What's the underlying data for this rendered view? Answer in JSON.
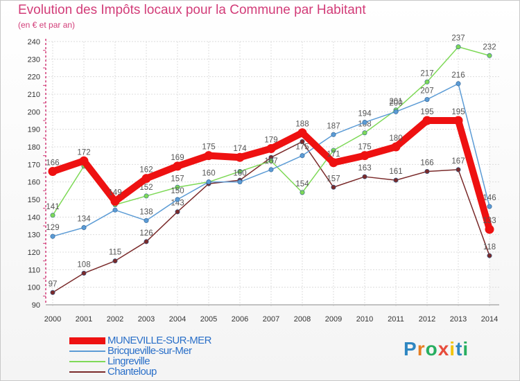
{
  "title": "Evolution des Impôts locaux pour la Commune par Habitant",
  "subtitle": "(en € et par an)",
  "logo": "Proxiti",
  "chart_data": {
    "type": "line",
    "title": "Evolution des Impôts locaux pour la Commune par Habitant",
    "ylabel": "(en € et par an)",
    "xlabel": "",
    "x": [
      "2000",
      "2001",
      "2002",
      "2003",
      "2004",
      "2005",
      "2006",
      "2007",
      "2008",
      "2009",
      "2010",
      "2011",
      "2012",
      "2013",
      "2014"
    ],
    "ylim": [
      90,
      240
    ],
    "yticks": [
      "90",
      "100",
      "110",
      "120",
      "130",
      "140",
      "150",
      "160",
      "170",
      "180",
      "190",
      "200",
      "210",
      "220",
      "230",
      "240"
    ],
    "legend_position": "bottom-left",
    "series": [
      {
        "name": "Chanteloup",
        "color": "#7a2a2a",
        "values": [
          97,
          108,
          115,
          126,
          143,
          159,
          161,
          174,
          183,
          157,
          163,
          161,
          166,
          167,
          118
        ],
        "labels": [
          "97",
          "108",
          "115",
          "126",
          "143",
          "",
          "",
          "",
          "",
          "157",
          "163",
          "161",
          "166",
          "167",
          "118"
        ]
      },
      {
        "name": "Lingreville",
        "color": "#7ed957",
        "values": [
          141,
          169,
          147,
          152,
          157,
          160,
          166,
          172,
          154,
          178,
          188,
          201,
          217,
          237,
          232
        ],
        "labels": [
          "141",
          "",
          "",
          "152",
          "157",
          "",
          "",
          "",
          "154",
          "",
          "188",
          "201",
          "217",
          "237",
          "232"
        ]
      },
      {
        "name": "Bricqueville-sur-Mer",
        "color": "#5b9bd5",
        "values": [
          129,
          134,
          144,
          138,
          150,
          160,
          160,
          167,
          175,
          187,
          194,
          200,
          207,
          216,
          146
        ],
        "labels": [
          "129",
          "134",
          "",
          "138",
          "150",
          "160",
          "160",
          "167",
          "175",
          "187",
          "194",
          "200",
          "207",
          "216",
          "146"
        ]
      },
      {
        "name": "MUNEVILLE-SUR-MER",
        "color": "#ee1111",
        "values": [
          166,
          172,
          149,
          162,
          169,
          175,
          174,
          179,
          188,
          171,
          175,
          180,
          195,
          195,
          133
        ],
        "labels": [
          "166",
          "172",
          "149",
          "162",
          "169",
          "175",
          "174",
          "179",
          "188",
          "171",
          "175",
          "180",
          "195",
          "195",
          "133"
        ]
      }
    ]
  },
  "legend": [
    {
      "name": "MUNEVILLE-SUR-MER",
      "color": "#ee1111"
    },
    {
      "name": "Bricqueville-sur-Mer",
      "color": "#5b9bd5"
    },
    {
      "name": "Lingreville",
      "color": "#7ed957"
    },
    {
      "name": "Chanteloup",
      "color": "#7a2a2a"
    }
  ]
}
